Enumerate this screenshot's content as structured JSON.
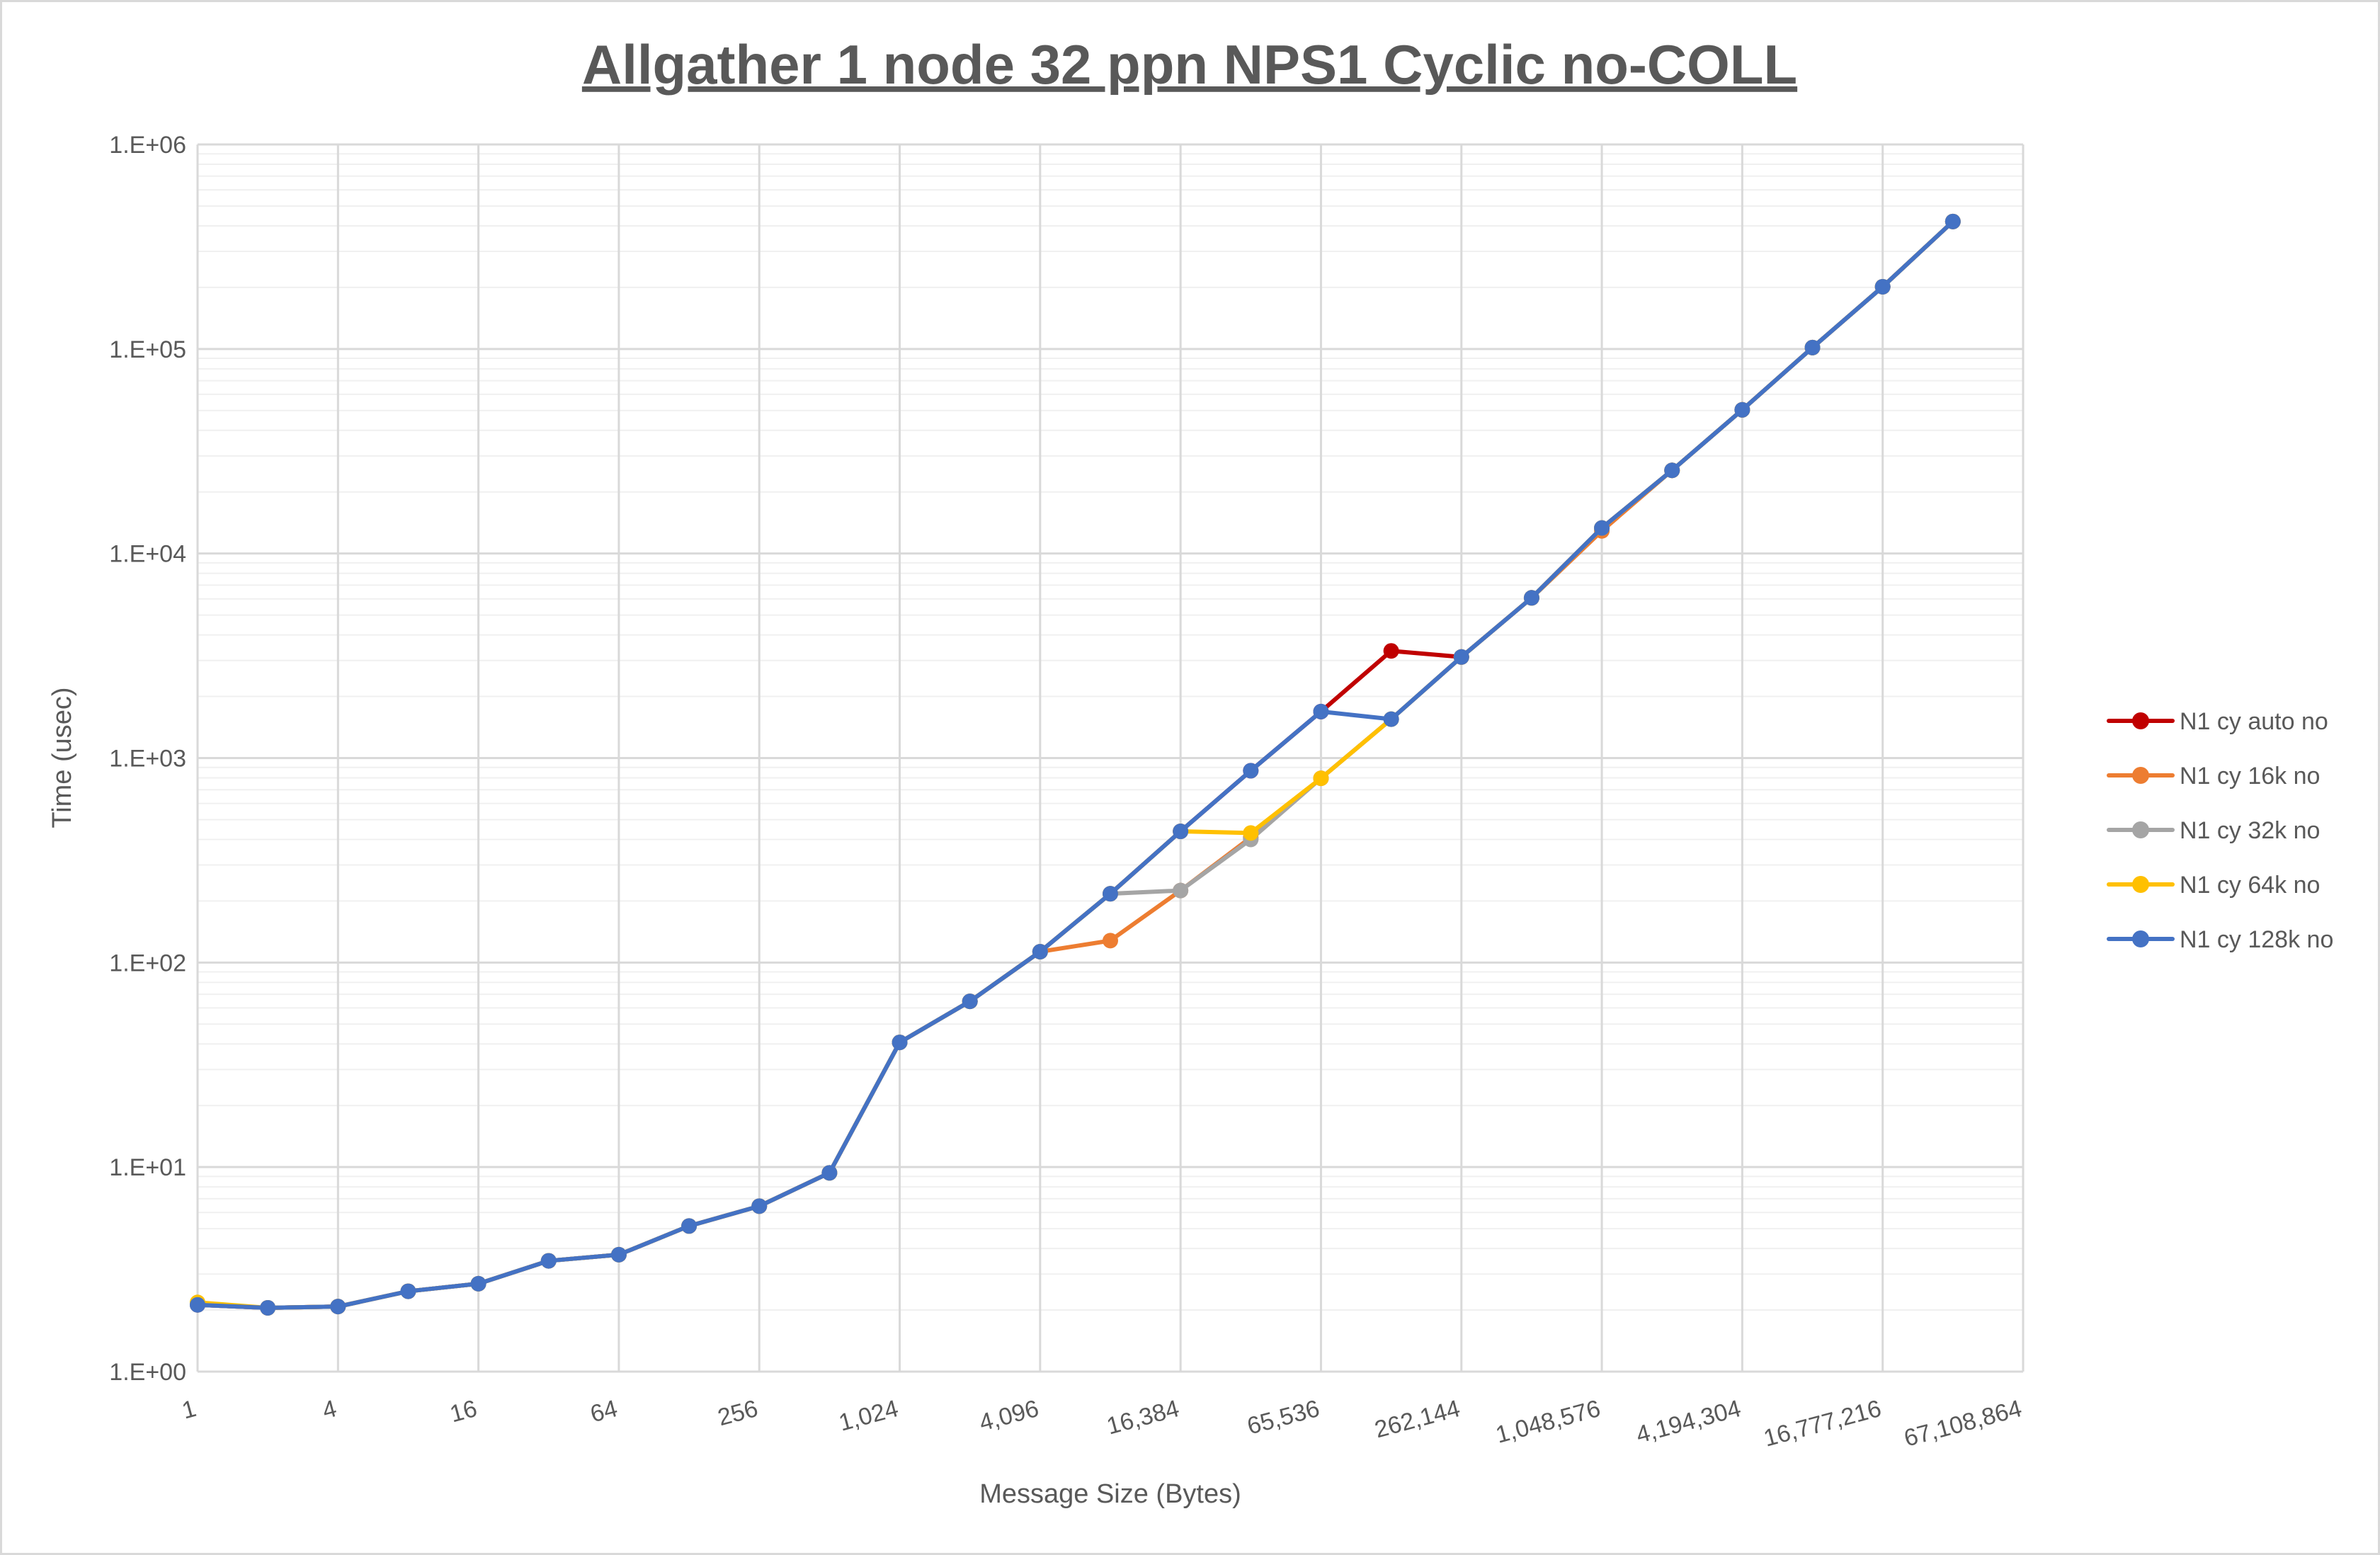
{
  "chart_data": {
    "type": "line",
    "title": "Allgather 1 node 32 ppn NPS1 Cyclic no-COLL",
    "xlabel": "Message Size (Bytes)",
    "ylabel": "Time (usec)",
    "x_scale": "log2",
    "y_scale": "log10",
    "xlim": [
      1,
      67108864
    ],
    "ylim": [
      1,
      1000000
    ],
    "grid": true,
    "legend_position": "right",
    "x_tick_labels": [
      "1",
      "4",
      "16",
      "64",
      "256",
      "1,024",
      "4,096",
      "16,384",
      "65,536",
      "262,144",
      "1,048,576",
      "4,194,304",
      "16,777,216",
      "67,108,864"
    ],
    "y_tick_labels": [
      "1.E+00",
      "1.E+01",
      "1.E+02",
      "1.E+03",
      "1.E+04",
      "1.E+05",
      "1.E+06"
    ],
    "x": [
      1,
      2,
      4,
      8,
      16,
      32,
      64,
      128,
      256,
      512,
      1024,
      2048,
      4096,
      8192,
      16384,
      32768,
      65536,
      131072,
      262144,
      524288,
      1048576,
      2097152,
      4194304,
      8388608,
      16777216,
      33554432
    ],
    "series": [
      {
        "name": "N1 cy auto no",
        "color": "#c00000",
        "values": [
          2.12,
          2.05,
          2.08,
          2.47,
          2.69,
          3.48,
          3.73,
          5.15,
          6.44,
          9.37,
          40.7,
          64.6,
          113,
          217,
          438,
          867,
          1687,
          3340,
          3119,
          6070,
          13330,
          25500,
          50400,
          101600,
          201500,
          420000
        ]
      },
      {
        "name": "N1 cy 16k no",
        "color": "#ed7d31",
        "values": [
          2.12,
          2.05,
          2.08,
          2.47,
          2.69,
          3.48,
          3.73,
          5.15,
          6.44,
          9.37,
          40.7,
          64.6,
          113,
          128,
          225,
          409,
          796,
          1549,
          3119,
          6070,
          12900,
          25500,
          50400,
          101600,
          201500,
          420000
        ]
      },
      {
        "name": "N1 cy 32k no",
        "color": "#a5a5a5",
        "values": [
          2.12,
          2.05,
          2.08,
          2.47,
          2.69,
          3.48,
          3.73,
          5.15,
          6.44,
          9.37,
          40.7,
          64.6,
          113,
          217,
          225,
          400,
          796,
          1549,
          3119,
          6070,
          13330,
          25500,
          50400,
          101600,
          201500,
          420000
        ]
      },
      {
        "name": "N1 cy 64k no",
        "color": "#ffc000",
        "values": [
          2.18,
          2.05,
          2.08,
          2.47,
          2.69,
          3.48,
          3.73,
          5.15,
          6.44,
          9.37,
          40.7,
          64.6,
          113,
          217,
          438,
          430,
          796,
          1549,
          3119,
          6070,
          13330,
          25500,
          50400,
          101600,
          201500,
          420000
        ]
      },
      {
        "name": "N1 cy 128k no",
        "color": "#4472c4",
        "values": [
          2.12,
          2.05,
          2.08,
          2.47,
          2.69,
          3.48,
          3.73,
          5.15,
          6.44,
          9.37,
          40.7,
          64.6,
          113,
          217,
          438,
          867,
          1687,
          1549,
          3119,
          6070,
          13330,
          25500,
          50400,
          101600,
          201500,
          420000
        ]
      }
    ]
  }
}
